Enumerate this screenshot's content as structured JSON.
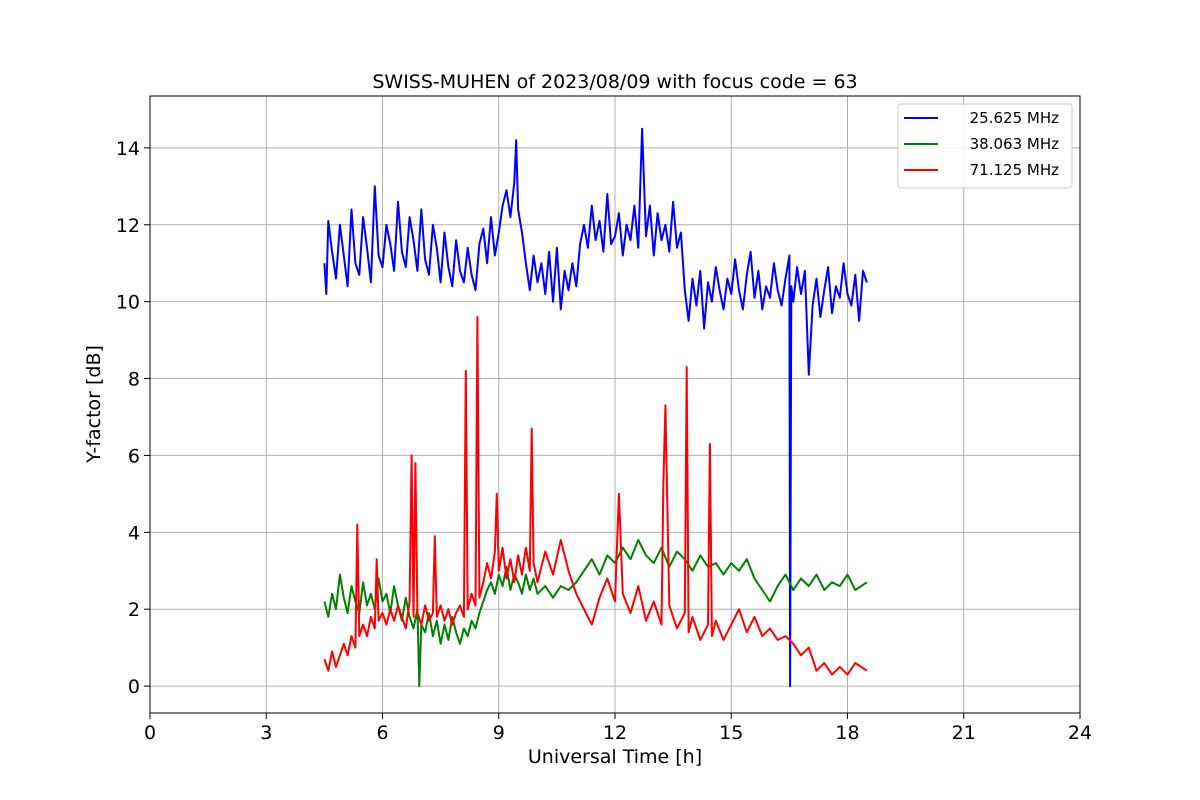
{
  "chart_data": {
    "type": "line",
    "title": "SWISS-MUHEN of 2023/08/09 with focus code = 63",
    "xlabel": "Universal Time [h]",
    "ylabel": "Y-factor [dB]",
    "xlim": [
      0,
      24
    ],
    "ylim": [
      -0.7,
      15.35
    ],
    "xticks": [
      0,
      3,
      6,
      9,
      12,
      15,
      18,
      21,
      24
    ],
    "xtick_labels": [
      "0",
      "3",
      "6",
      "9",
      "12",
      "15",
      "18",
      "21",
      "24"
    ],
    "yticks": [
      0,
      2,
      4,
      6,
      8,
      10,
      12,
      14
    ],
    "ytick_labels": [
      "0",
      "2",
      "4",
      "6",
      "8",
      "10",
      "12",
      "14"
    ],
    "grid": true,
    "legend_position": "top-right",
    "series": [
      {
        "name": "25.625 MHz",
        "color": "#0000ff",
        "x": [
          4.5,
          4.55,
          4.6,
          4.7,
          4.8,
          4.9,
          5.0,
          5.1,
          5.2,
          5.3,
          5.4,
          5.5,
          5.6,
          5.7,
          5.8,
          5.9,
          6.0,
          6.1,
          6.2,
          6.3,
          6.4,
          6.5,
          6.6,
          6.7,
          6.8,
          6.9,
          7.0,
          7.1,
          7.2,
          7.3,
          7.4,
          7.5,
          7.6,
          7.7,
          7.8,
          7.9,
          8.0,
          8.1,
          8.2,
          8.3,
          8.4,
          8.5,
          8.6,
          8.7,
          8.8,
          8.9,
          9.0,
          9.1,
          9.2,
          9.3,
          9.4,
          9.45,
          9.5,
          9.6,
          9.7,
          9.8,
          9.9,
          10.0,
          10.1,
          10.2,
          10.3,
          10.4,
          10.5,
          10.6,
          10.7,
          10.8,
          10.9,
          11.0,
          11.1,
          11.2,
          11.3,
          11.4,
          11.5,
          11.6,
          11.7,
          11.8,
          11.9,
          12.0,
          12.1,
          12.2,
          12.3,
          12.4,
          12.5,
          12.6,
          12.7,
          12.8,
          12.9,
          13.0,
          13.1,
          13.2,
          13.3,
          13.4,
          13.5,
          13.6,
          13.7,
          13.8,
          13.9,
          14.0,
          14.1,
          14.2,
          14.3,
          14.4,
          14.5,
          14.6,
          14.7,
          14.8,
          14.9,
          15.0,
          15.1,
          15.2,
          15.3,
          15.4,
          15.5,
          15.6,
          15.7,
          15.8,
          15.9,
          16.0,
          16.1,
          16.2,
          16.3,
          16.4,
          16.5,
          16.52,
          16.55,
          16.6,
          16.7,
          16.8,
          16.9,
          17.0,
          17.1,
          17.2,
          17.3,
          17.4,
          17.5,
          17.6,
          17.7,
          17.8,
          17.9,
          18.0,
          18.1,
          18.2,
          18.3,
          18.4,
          18.5
        ],
        "y": [
          11.0,
          10.2,
          12.1,
          11.3,
          10.6,
          12.0,
          11.2,
          10.4,
          12.4,
          11.0,
          10.7,
          12.2,
          11.4,
          10.5,
          13.0,
          11.2,
          10.9,
          12.0,
          11.5,
          10.8,
          12.6,
          11.3,
          10.9,
          12.2,
          11.6,
          10.8,
          12.4,
          11.1,
          10.7,
          12.0,
          11.4,
          10.5,
          11.8,
          10.9,
          10.4,
          11.6,
          10.8,
          10.5,
          11.4,
          10.7,
          10.3,
          11.5,
          11.9,
          11.0,
          12.2,
          11.2,
          11.8,
          12.5,
          12.9,
          12.2,
          13.1,
          14.2,
          12.4,
          11.8,
          11.0,
          10.3,
          11.2,
          10.5,
          11.0,
          10.2,
          11.3,
          10.0,
          11.4,
          9.8,
          10.8,
          10.3,
          11.0,
          10.4,
          11.5,
          12.0,
          11.4,
          12.5,
          11.6,
          12.1,
          11.3,
          12.8,
          11.5,
          11.7,
          12.3,
          11.2,
          12.0,
          11.6,
          12.5,
          11.4,
          14.5,
          11.7,
          12.5,
          11.2,
          12.3,
          11.6,
          12.0,
          11.3,
          12.6,
          11.4,
          11.8,
          10.3,
          9.5,
          10.6,
          9.9,
          10.8,
          9.3,
          10.5,
          10.0,
          10.9,
          10.3,
          9.8,
          10.6,
          10.2,
          11.1,
          10.3,
          9.8,
          10.7,
          11.3,
          10.1,
          10.8,
          9.8,
          10.4,
          10.1,
          11.0,
          10.3,
          9.9,
          10.6,
          11.2,
          0.0,
          10.4,
          10.0,
          10.9,
          10.2,
          10.8,
          8.1,
          9.9,
          10.6,
          9.6,
          10.3,
          10.9,
          9.7,
          10.4,
          10.1,
          11.0,
          10.2,
          9.9,
          10.7,
          9.5,
          10.8,
          10.5
        ]
      },
      {
        "name": "38.063 MHz",
        "color": "#008000",
        "x": [
          4.5,
          4.6,
          4.7,
          4.8,
          4.9,
          5.0,
          5.1,
          5.2,
          5.3,
          5.4,
          5.5,
          5.6,
          5.7,
          5.8,
          5.9,
          6.0,
          6.1,
          6.2,
          6.3,
          6.4,
          6.5,
          6.6,
          6.7,
          6.8,
          6.9,
          6.95,
          7.0,
          7.1,
          7.2,
          7.3,
          7.4,
          7.5,
          7.6,
          7.7,
          7.8,
          7.9,
          8.0,
          8.1,
          8.2,
          8.3,
          8.4,
          8.5,
          8.6,
          8.7,
          8.8,
          8.9,
          9.0,
          9.1,
          9.2,
          9.3,
          9.4,
          9.5,
          9.6,
          9.7,
          9.8,
          9.9,
          10.0,
          10.2,
          10.4,
          10.6,
          10.8,
          11.0,
          11.2,
          11.4,
          11.6,
          11.8,
          12.0,
          12.2,
          12.4,
          12.6,
          12.8,
          13.0,
          13.2,
          13.4,
          13.6,
          13.8,
          14.0,
          14.2,
          14.4,
          14.6,
          14.8,
          15.0,
          15.2,
          15.4,
          15.6,
          15.8,
          16.0,
          16.2,
          16.4,
          16.6,
          16.8,
          17.0,
          17.2,
          17.4,
          17.6,
          17.8,
          18.0,
          18.2,
          18.5
        ],
        "y": [
          2.2,
          1.8,
          2.4,
          2.0,
          2.9,
          2.3,
          1.9,
          2.6,
          2.2,
          1.9,
          2.7,
          2.1,
          2.4,
          2.0,
          2.8,
          2.2,
          2.4,
          1.9,
          2.6,
          2.1,
          1.7,
          2.3,
          1.8,
          1.5,
          2.0,
          0.0,
          1.6,
          1.4,
          1.9,
          1.3,
          1.7,
          1.1,
          1.6,
          1.2,
          1.8,
          1.4,
          1.1,
          1.5,
          1.3,
          1.7,
          1.5,
          1.9,
          2.2,
          2.5,
          2.7,
          2.4,
          2.9,
          2.6,
          3.1,
          2.5,
          2.9,
          2.7,
          2.4,
          2.9,
          2.5,
          2.8,
          2.4,
          2.6,
          2.3,
          2.6,
          2.5,
          2.7,
          3.0,
          3.3,
          2.9,
          3.4,
          3.2,
          3.6,
          3.3,
          3.8,
          3.4,
          3.2,
          3.6,
          3.1,
          3.5,
          3.3,
          3.0,
          3.4,
          3.1,
          3.2,
          2.9,
          3.2,
          3.0,
          3.3,
          2.8,
          2.5,
          2.2,
          2.6,
          2.9,
          2.5,
          2.8,
          2.6,
          2.9,
          2.5,
          2.7,
          2.6,
          2.9,
          2.5,
          2.7
        ]
      },
      {
        "name": "71.125 MHz",
        "color": "#ff0000",
        "x": [
          4.5,
          4.6,
          4.7,
          4.8,
          4.9,
          5.0,
          5.1,
          5.2,
          5.3,
          5.35,
          5.4,
          5.5,
          5.6,
          5.7,
          5.8,
          5.85,
          5.9,
          6.0,
          6.1,
          6.2,
          6.3,
          6.4,
          6.5,
          6.6,
          6.7,
          6.75,
          6.8,
          6.85,
          6.9,
          7.0,
          7.1,
          7.2,
          7.3,
          7.35,
          7.4,
          7.5,
          7.6,
          7.7,
          7.8,
          7.9,
          8.0,
          8.1,
          8.15,
          8.2,
          8.3,
          8.4,
          8.45,
          8.5,
          8.6,
          8.7,
          8.8,
          8.9,
          8.95,
          9.0,
          9.1,
          9.2,
          9.3,
          9.4,
          9.5,
          9.6,
          9.7,
          9.8,
          9.85,
          9.9,
          10.0,
          10.2,
          10.4,
          10.6,
          10.8,
          11.0,
          11.2,
          11.4,
          11.6,
          11.8,
          12.0,
          12.1,
          12.2,
          12.4,
          12.6,
          12.8,
          13.0,
          13.2,
          13.25,
          13.3,
          13.4,
          13.6,
          13.8,
          13.85,
          13.9,
          14.0,
          14.2,
          14.4,
          14.45,
          14.5,
          14.6,
          14.8,
          15.0,
          15.2,
          15.4,
          15.6,
          15.8,
          16.0,
          16.2,
          16.4,
          16.6,
          16.8,
          17.0,
          17.2,
          17.4,
          17.6,
          17.8,
          18.0,
          18.2,
          18.5
        ],
        "y": [
          0.7,
          0.4,
          0.9,
          0.5,
          0.8,
          1.1,
          0.8,
          1.3,
          1.0,
          4.2,
          1.3,
          1.6,
          1.3,
          1.8,
          1.5,
          3.3,
          1.7,
          1.9,
          1.6,
          2.0,
          1.7,
          2.1,
          1.8,
          1.5,
          2.2,
          6.0,
          1.8,
          5.8,
          1.9,
          1.6,
          2.1,
          1.7,
          1.9,
          3.9,
          1.8,
          2.1,
          1.7,
          2.0,
          1.6,
          1.9,
          2.1,
          1.8,
          8.2,
          2.0,
          2.4,
          2.1,
          9.6,
          2.3,
          2.7,
          3.2,
          2.8,
          3.5,
          5.0,
          3.0,
          3.6,
          2.8,
          3.3,
          2.7,
          3.4,
          2.9,
          3.6,
          3.0,
          6.7,
          3.2,
          2.7,
          3.5,
          2.9,
          3.8,
          3.0,
          2.4,
          2.0,
          1.6,
          2.3,
          2.8,
          2.2,
          5.0,
          2.4,
          1.9,
          2.6,
          1.7,
          2.2,
          1.6,
          5.3,
          7.3,
          2.1,
          1.5,
          1.9,
          8.3,
          1.4,
          1.8,
          1.2,
          1.6,
          6.3,
          1.3,
          1.7,
          1.2,
          1.6,
          2.0,
          1.4,
          1.8,
          1.3,
          1.5,
          1.2,
          1.3,
          1.1,
          0.8,
          1.0,
          0.4,
          0.6,
          0.3,
          0.5,
          0.3,
          0.6,
          0.4
        ]
      }
    ]
  }
}
